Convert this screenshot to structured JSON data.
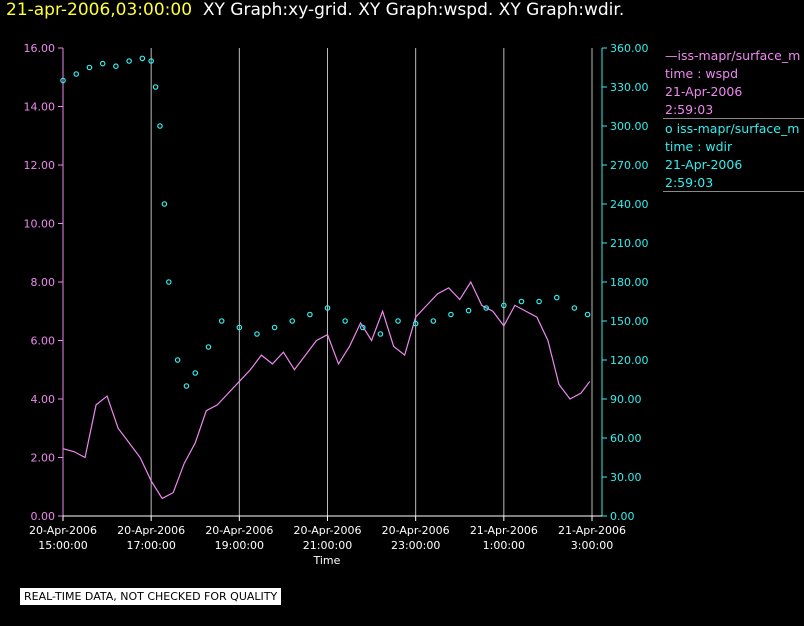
{
  "title": {
    "timestamp": "21-apr-2006,03:00:00",
    "graphs": "XY Graph:xy-grid.  XY Graph:wspd.  XY Graph:wdir."
  },
  "legend": {
    "series1": {
      "name": "—iss-mapr/surface_m",
      "vars": "time : wspd",
      "date": "21-Apr-2006",
      "time": "2:59:03"
    },
    "series2": {
      "name": "iss-mapr/surface_m",
      "vars": "time : wdir",
      "date": "21-Apr-2006",
      "time": "2:59:03"
    }
  },
  "disclaimer": "REAL-TIME DATA, NOT CHECKED FOR QUALITY",
  "colors": {
    "wspd": "#ee88ee",
    "wdir": "#33eeee",
    "grid": "#bbbbbb",
    "title_ts": "#ffff33"
  },
  "chart_data": {
    "type": "line",
    "title": "XY Graph",
    "xlabel": "Time",
    "x_ticks": [
      {
        "date": "20-Apr-2006",
        "time": "15:00:00",
        "hour": 0
      },
      {
        "date": "20-Apr-2006",
        "time": "17:00:00",
        "hour": 2
      },
      {
        "date": "20-Apr-2006",
        "time": "19:00:00",
        "hour": 4
      },
      {
        "date": "20-Apr-2006",
        "time": "21:00:00",
        "hour": 6
      },
      {
        "date": "20-Apr-2006",
        "time": "23:00:00",
        "hour": 8
      },
      {
        "date": "21-Apr-2006",
        "time": "1:00:00",
        "hour": 10
      },
      {
        "date": "21-Apr-2006",
        "time": "3:00:00",
        "hour": 12
      }
    ],
    "xlim": [
      0,
      12
    ],
    "y_left": {
      "label": "wspd",
      "lim": [
        0,
        16
      ],
      "ticks": [
        "0.00",
        "2.00",
        "4.00",
        "6.00",
        "8.00",
        "10.00",
        "12.00",
        "14.00",
        "16.00"
      ]
    },
    "y_right": {
      "label": "wdir",
      "lim": [
        0,
        360
      ],
      "ticks": [
        "0.00",
        "30.00",
        "60.00",
        "90.00",
        "120.00",
        "150.00",
        "180.00",
        "210.00",
        "240.00",
        "270.00",
        "300.00",
        "330.00",
        "360.00"
      ]
    },
    "series": [
      {
        "name": "wspd",
        "style": "line",
        "hours": [
          0.0,
          0.25,
          0.5,
          0.75,
          1.0,
          1.25,
          1.5,
          1.75,
          2.0,
          2.25,
          2.5,
          2.75,
          3.0,
          3.25,
          3.5,
          3.75,
          4.0,
          4.25,
          4.5,
          4.75,
          5.0,
          5.25,
          5.5,
          5.75,
          6.0,
          6.25,
          6.5,
          6.75,
          7.0,
          7.25,
          7.5,
          7.75,
          8.0,
          8.25,
          8.5,
          8.75,
          9.0,
          9.25,
          9.5,
          9.75,
          10.0,
          10.25,
          10.5,
          10.75,
          11.0,
          11.25,
          11.5,
          11.75,
          11.95
        ],
        "values": [
          2.3,
          2.2,
          2.0,
          3.8,
          4.1,
          3.0,
          2.5,
          2.0,
          1.2,
          0.6,
          0.8,
          1.8,
          2.5,
          3.6,
          3.8,
          4.2,
          4.6,
          5.0,
          5.5,
          5.2,
          5.6,
          5.0,
          5.5,
          6.0,
          6.2,
          5.2,
          5.8,
          6.6,
          6.0,
          7.0,
          5.8,
          5.5,
          6.8,
          7.2,
          7.6,
          7.8,
          7.4,
          8.0,
          7.2,
          7.0,
          6.5,
          7.2,
          7.0,
          6.8,
          6.0,
          4.5,
          4.0,
          4.2,
          4.6
        ]
      },
      {
        "name": "wdir",
        "style": "markers",
        "hours": [
          0.0,
          0.3,
          0.6,
          0.9,
          1.2,
          1.5,
          1.8,
          2.0,
          2.1,
          2.2,
          2.3,
          2.4,
          2.6,
          2.8,
          3.0,
          3.3,
          3.6,
          4.0,
          4.4,
          4.8,
          5.2,
          5.6,
          6.0,
          6.4,
          6.8,
          7.2,
          7.6,
          8.0,
          8.4,
          8.8,
          9.2,
          9.6,
          10.0,
          10.4,
          10.8,
          11.2,
          11.6,
          11.9
        ],
        "values": [
          335,
          340,
          345,
          348,
          346,
          350,
          352,
          350,
          330,
          300,
          240,
          180,
          120,
          100,
          110,
          130,
          150,
          145,
          140,
          145,
          150,
          155,
          160,
          150,
          145,
          140,
          150,
          148,
          150,
          155,
          158,
          160,
          162,
          165,
          165,
          168,
          160,
          155
        ]
      }
    ]
  }
}
